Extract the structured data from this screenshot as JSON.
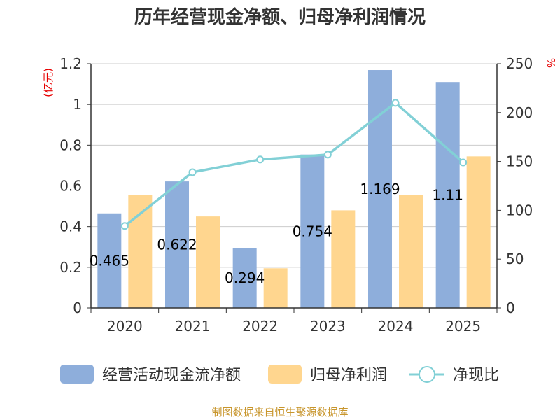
{
  "title": "历年经营现金净额、归母净利润情况",
  "source": "制图数据来自恒生聚源数据库",
  "colors": {
    "bar1": "#8eaedb",
    "bar2": "#ffd68f",
    "line": "#82d0d6",
    "unit": "#e60000",
    "source": "#c8962d"
  },
  "chart_data": {
    "type": "bar",
    "categories": [
      "2020",
      "2021",
      "2022",
      "2023",
      "2024",
      "2025"
    ],
    "left_unit": "(亿元)",
    "right_unit": "%",
    "ylim_left": [
      0,
      1.2
    ],
    "ylim_right": [
      0,
      250
    ],
    "yticks_left": [
      "0",
      "0.2",
      "0.4",
      "0.6",
      "0.8",
      "1",
      "1.2"
    ],
    "yticks_right": [
      "0",
      "50",
      "100",
      "150",
      "200",
      "250"
    ],
    "grid": true,
    "legend_position": "bottom",
    "series": [
      {
        "name": "经营活动现金流净额",
        "type": "bar",
        "axis": "left",
        "values": [
          0.465,
          0.622,
          0.294,
          0.754,
          1.169,
          1.11
        ],
        "labels": [
          "0.465",
          "0.622",
          "0.294",
          "0.754",
          "1.169",
          "1.11"
        ]
      },
      {
        "name": "归母净利润",
        "type": "bar",
        "axis": "left",
        "values": [
          0.555,
          0.45,
          0.195,
          0.48,
          0.555,
          0.745
        ]
      },
      {
        "name": "净现比",
        "type": "line",
        "axis": "right",
        "values": [
          84,
          139,
          152,
          157,
          210,
          149
        ]
      }
    ]
  }
}
